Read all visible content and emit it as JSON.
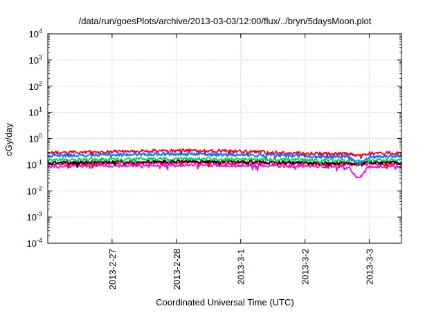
{
  "chart_data": {
    "type": "line",
    "title": "/data/run/goesPlots/archive/2013-03-03/12:00/flux/../bryn/5daysMoon.plot",
    "xlabel": "Coordinated Universal Time (UTC)",
    "ylabel": "cGy/day",
    "yscale": "log",
    "ylim": [
      0.0001,
      10000
    ],
    "y_ticks": [
      {
        "base": "10",
        "exp": "-4",
        "value": 0.0001
      },
      {
        "base": "10",
        "exp": "-3",
        "value": 0.001
      },
      {
        "base": "10",
        "exp": "-2",
        "value": 0.01
      },
      {
        "base": "10",
        "exp": "-1",
        "value": 0.1
      },
      {
        "base": "10",
        "exp": "0",
        "value": 1
      },
      {
        "base": "10",
        "exp": "1",
        "value": 10
      },
      {
        "base": "10",
        "exp": "2",
        "value": 100
      },
      {
        "base": "10",
        "exp": "3",
        "value": 1000
      },
      {
        "base": "10",
        "exp": "4",
        "value": 10000
      }
    ],
    "xlim": [
      "2013-02-26 00:00",
      "2013-03-03 12:00"
    ],
    "x_ticks": [
      {
        "label": "2013-2-27",
        "value": "2013-02-27"
      },
      {
        "label": "2013-2-28",
        "value": "2013-02-28"
      },
      {
        "label": "2013-3-1",
        "value": "2013-03-01"
      },
      {
        "label": "2013-3-2",
        "value": "2013-03-02"
      },
      {
        "label": "2013-3-3",
        "value": "2013-03-03"
      }
    ],
    "grid": true,
    "series": [
      {
        "color": "#ff00ff",
        "x": [
          "2013-02-26 00:00",
          "2013-02-26 12:00",
          "2013-02-27 00:00",
          "2013-02-27 12:00",
          "2013-02-28 00:00",
          "2013-02-28 12:00",
          "2013-03-01 00:00",
          "2013-03-01 12:00",
          "2013-03-02 00:00",
          "2013-03-02 08:00",
          "2013-03-02 16:00",
          "2013-03-02 20:00",
          "2013-03-03 00:00",
          "2013-03-03 12:00"
        ],
        "y": [
          0.085,
          0.09,
          0.092,
          0.095,
          0.097,
          0.095,
          0.092,
          0.09,
          0.088,
          0.085,
          0.084,
          0.03,
          0.085,
          0.088
        ]
      },
      {
        "color": "#ff0000",
        "x": [
          "2013-02-26 00:00",
          "2013-02-26 12:00",
          "2013-02-27 00:00",
          "2013-02-27 12:00",
          "2013-02-28 00:00",
          "2013-02-28 12:00",
          "2013-03-01 00:00",
          "2013-03-01 12:00",
          "2013-03-02 00:00",
          "2013-03-02 08:00",
          "2013-03-02 16:00",
          "2013-03-02 20:00",
          "2013-03-03 00:00",
          "2013-03-03 12:00"
        ],
        "y": [
          0.11,
          0.112,
          0.115,
          0.118,
          0.12,
          0.118,
          0.115,
          0.112,
          0.11,
          0.108,
          0.106,
          0.1,
          0.108,
          0.11
        ]
      },
      {
        "color": "#000000",
        "x": [
          "2013-02-26 00:00",
          "2013-02-26 12:00",
          "2013-02-27 00:00",
          "2013-02-27 12:00",
          "2013-02-28 00:00",
          "2013-02-28 12:00",
          "2013-03-01 00:00",
          "2013-03-01 12:00",
          "2013-03-02 00:00",
          "2013-03-02 08:00",
          "2013-03-02 16:00",
          "2013-03-02 20:00",
          "2013-03-03 00:00",
          "2013-03-03 12:00"
        ],
        "y": [
          0.12,
          0.123,
          0.126,
          0.13,
          0.133,
          0.131,
          0.127,
          0.124,
          0.12,
          0.118,
          0.116,
          0.11,
          0.12,
          0.122
        ]
      },
      {
        "color": "#00cc66",
        "x": [
          "2013-02-26 00:00",
          "2013-02-26 12:00",
          "2013-02-27 00:00",
          "2013-02-27 12:00",
          "2013-02-28 00:00",
          "2013-02-28 12:00",
          "2013-03-01 00:00",
          "2013-03-01 12:00",
          "2013-03-02 00:00",
          "2013-03-02 08:00",
          "2013-03-02 16:00",
          "2013-03-02 20:00",
          "2013-03-03 00:00",
          "2013-03-03 12:00"
        ],
        "y": [
          0.15,
          0.155,
          0.16,
          0.165,
          0.17,
          0.166,
          0.16,
          0.156,
          0.15,
          0.146,
          0.143,
          0.135,
          0.15,
          0.152
        ]
      },
      {
        "color": "#2f6fff",
        "x": [
          "2013-02-26 00:00",
          "2013-02-26 12:00",
          "2013-02-27 00:00",
          "2013-02-27 12:00",
          "2013-02-28 00:00",
          "2013-02-28 12:00",
          "2013-03-01 00:00",
          "2013-03-01 12:00",
          "2013-03-02 00:00",
          "2013-03-02 08:00",
          "2013-03-02 16:00",
          "2013-03-02 20:00",
          "2013-03-03 00:00",
          "2013-03-03 12:00"
        ],
        "y": [
          0.22,
          0.23,
          0.24,
          0.25,
          0.26,
          0.25,
          0.24,
          0.23,
          0.21,
          0.2,
          0.2,
          0.1,
          0.21,
          0.22
        ]
      },
      {
        "color": "#e8001c",
        "x": [
          "2013-02-26 00:00",
          "2013-02-26 12:00",
          "2013-02-27 00:00",
          "2013-02-27 12:00",
          "2013-02-28 00:00",
          "2013-02-28 12:00",
          "2013-03-01 00:00",
          "2013-03-01 12:00",
          "2013-03-02 00:00",
          "2013-03-02 08:00",
          "2013-03-02 16:00",
          "2013-03-02 20:00",
          "2013-03-03 00:00",
          "2013-03-03 12:00"
        ],
        "y": [
          0.28,
          0.3,
          0.31,
          0.33,
          0.35,
          0.34,
          0.32,
          0.3,
          0.27,
          0.26,
          0.26,
          0.22,
          0.27,
          0.28
        ]
      }
    ]
  }
}
